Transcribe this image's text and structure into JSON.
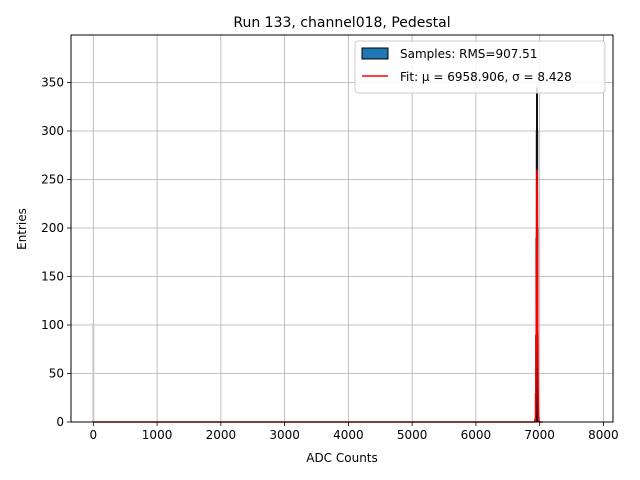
{
  "chart_data": {
    "type": "bar",
    "title": "Run 133, channel018, Pedestal",
    "xlabel": "ADC Counts",
    "ylabel": "Entries",
    "xlim": [
      -350,
      8150
    ],
    "ylim": [
      0,
      399
    ],
    "xticks": [
      0,
      1000,
      2000,
      3000,
      4000,
      5000,
      6000,
      7000,
      8000
    ],
    "yticks": [
      0,
      50,
      100,
      150,
      200,
      250,
      300,
      350
    ],
    "grid": true,
    "legend_position": "top-right",
    "legend": [
      {
        "label": "Samples: RMS=907.51",
        "kind": "patch",
        "color": "#1f77b4"
      },
      {
        "label": "Fit: μ = 6958.906, σ = 8.428",
        "kind": "line",
        "color": "#ff0000"
      }
    ],
    "series": [
      {
        "name": "Samples: RMS=907.51",
        "kind": "histogram",
        "color": "#1f77b4",
        "x": [
          0,
          6930,
          6940,
          6945,
          6950,
          6955,
          6958,
          6961,
          6964,
          6968,
          6972,
          6978,
          6985
        ],
        "values": [
          102,
          3,
          30,
          90,
          190,
          300,
          345,
          300,
          200,
          90,
          30,
          5,
          2
        ]
      },
      {
        "name": "Fit: μ = 6958.906, σ = 8.428",
        "kind": "gaussian_fit",
        "color": "#ff0000",
        "mu": 6958.906,
        "sigma": 8.428,
        "amplitude": 260,
        "x_range": [
          0,
          7050
        ]
      }
    ]
  }
}
